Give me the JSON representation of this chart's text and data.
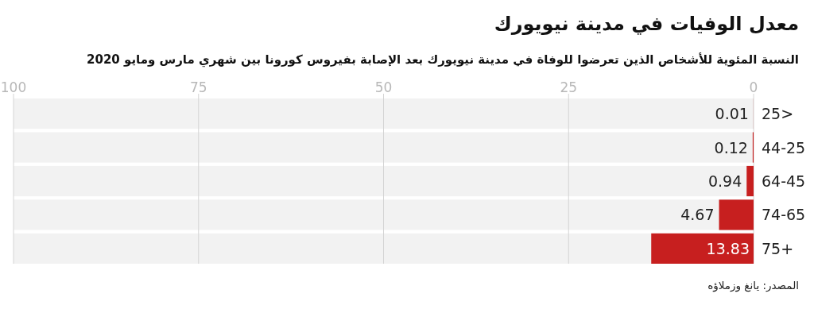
{
  "chart_data": {
    "type": "bar",
    "orientation": "horizontal",
    "title": "معدل الوفيات في مدينة نيويورك",
    "subtitle": "النسبة المئوية للأشخاص الذين تعرضوا للوفاة في مدينة نيويورك بعد الإصابة بفيروس كورونا بين شهري مارس ومايو 2020",
    "categories": [
      "25>",
      "44-25",
      "64-45",
      "74-65",
      "75+"
    ],
    "values": [
      0.01,
      0.12,
      0.94,
      4.67,
      13.83
    ],
    "color": "#c71f1f",
    "xlim": [
      100,
      0
    ],
    "xticks": [
      0,
      25,
      50,
      75,
      100
    ],
    "grid": "x",
    "data_labels": true,
    "annotations": [
      "المصدر: يانغ وزملاؤه"
    ]
  }
}
